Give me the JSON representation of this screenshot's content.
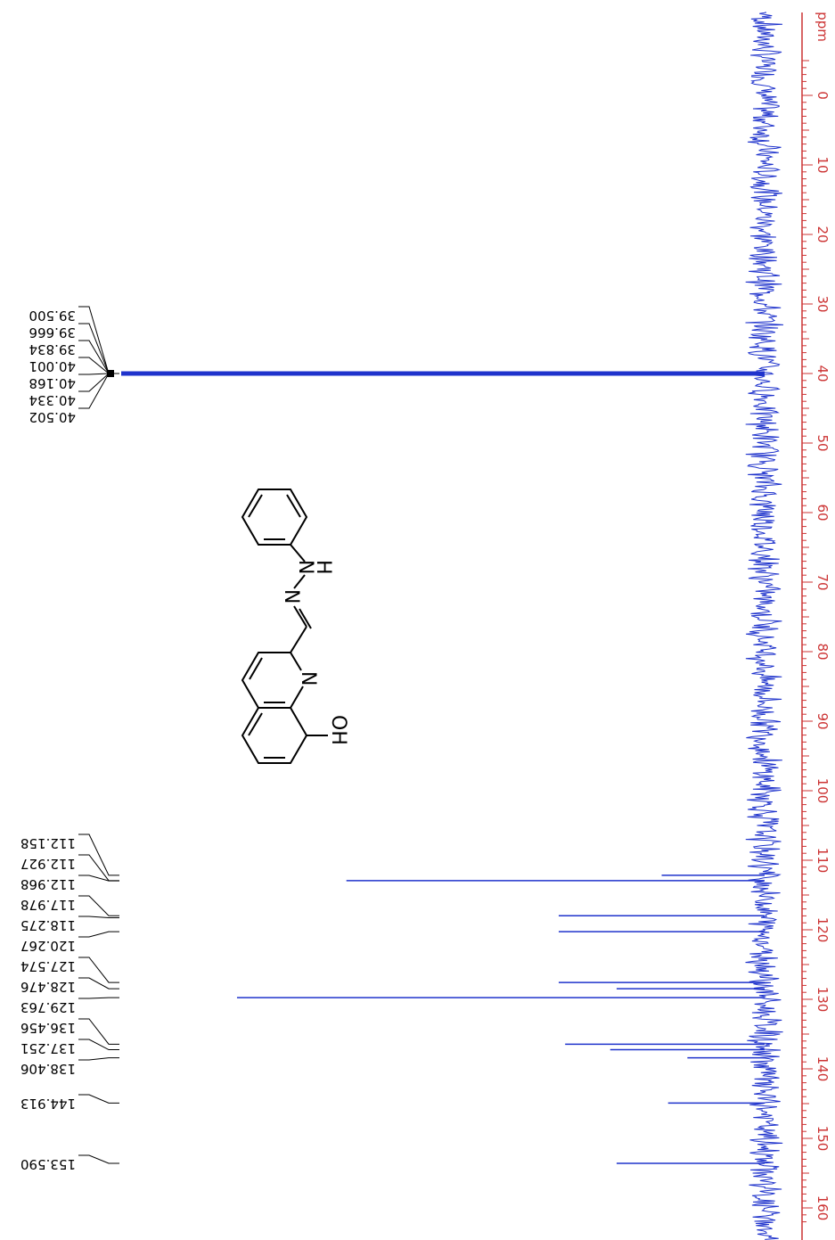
{
  "chart_data": {
    "type": "line",
    "orientation": "rotated-90",
    "xlabel": "ppm",
    "axis_range_ppm": [
      -10,
      162
    ],
    "axis_ticks": [
      0,
      10,
      20,
      30,
      40,
      50,
      60,
      70,
      80,
      90,
      100,
      110,
      120,
      130,
      140,
      150,
      160
    ],
    "axis_color": "#cc3333",
    "series_color": "#1f33cc",
    "grid": false,
    "peaks": [
      {
        "ppm": 40.001,
        "intensity": 1.0,
        "type": "solvent"
      },
      {
        "ppm": 112.158,
        "intensity": 0.16
      },
      {
        "ppm": 112.927,
        "intensity": 0.65
      },
      {
        "ppm": 117.978,
        "intensity": 0.32
      },
      {
        "ppm": 120.267,
        "intensity": 0.32
      },
      {
        "ppm": 127.574,
        "intensity": 0.32
      },
      {
        "ppm": 128.476,
        "intensity": 0.23
      },
      {
        "ppm": 129.763,
        "intensity": 0.82
      },
      {
        "ppm": 136.456,
        "intensity": 0.31
      },
      {
        "ppm": 137.251,
        "intensity": 0.24
      },
      {
        "ppm": 138.406,
        "intensity": 0.12
      },
      {
        "ppm": 144.913,
        "intensity": 0.15
      },
      {
        "ppm": 153.59,
        "intensity": 0.23
      }
    ],
    "label_groups": [
      {
        "labels": [
          "39.500",
          "39.666",
          "39.834",
          "40.001",
          "40.168",
          "40.334",
          "40.502"
        ],
        "anchor_ppm": 40.001
      },
      {
        "labels": [
          "112.158",
          "112.927",
          "112.968",
          "117.978",
          "118.275",
          "120.267",
          "127.574",
          "128.476",
          "129.763",
          "136.456",
          "137.251",
          "138.406"
        ],
        "anchor_ppm": [
          112.158,
          112.927,
          112.968,
          117.978,
          118.275,
          120.267,
          127.574,
          128.476,
          129.763,
          136.456,
          137.251,
          138.406
        ]
      },
      {
        "labels": [
          "144.913"
        ],
        "anchor_ppm": [
          144.913
        ]
      },
      {
        "labels": [
          "153.590"
        ],
        "anchor_ppm": [
          153.59
        ]
      }
    ]
  },
  "structure": {
    "atoms": {
      "oh": "OH",
      "n_ring": "N",
      "n_imine": "N",
      "n_h": "N",
      "h": "H"
    }
  }
}
